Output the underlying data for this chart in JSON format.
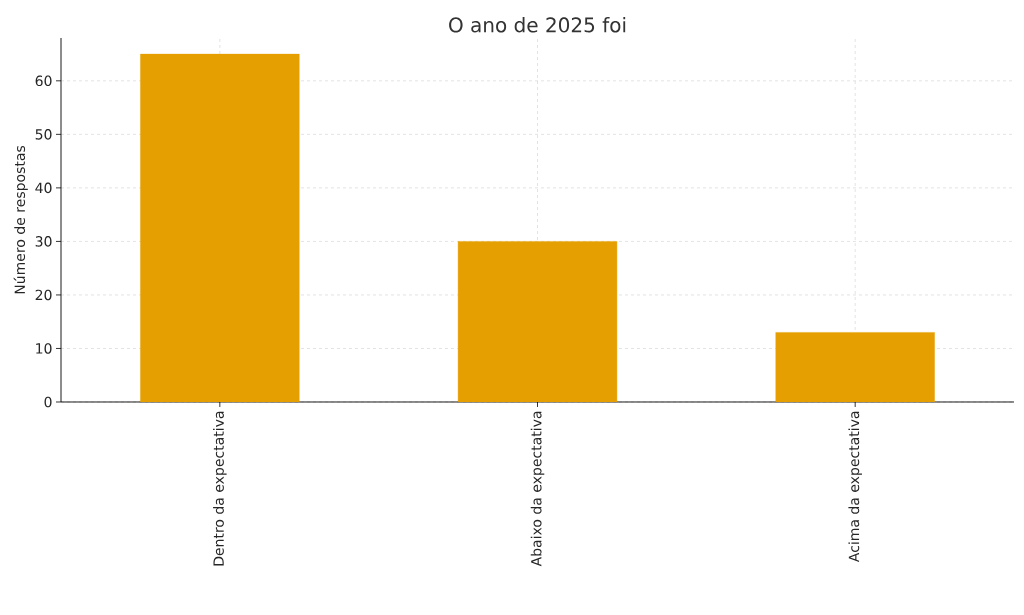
{
  "chart_data": {
    "type": "bar",
    "title": "O ano de 2025 foi",
    "ylabel": "Número de respostas",
    "categories": [
      "Dentro da expectativa",
      "Abaixo da expectativa",
      "Acima da expectativa"
    ],
    "values": [
      65,
      30,
      13
    ],
    "color": "#e69f00",
    "ylim": [
      0,
      68
    ],
    "yticks": [
      0,
      10,
      20,
      30,
      40,
      50,
      60
    ],
    "grid": true
  }
}
